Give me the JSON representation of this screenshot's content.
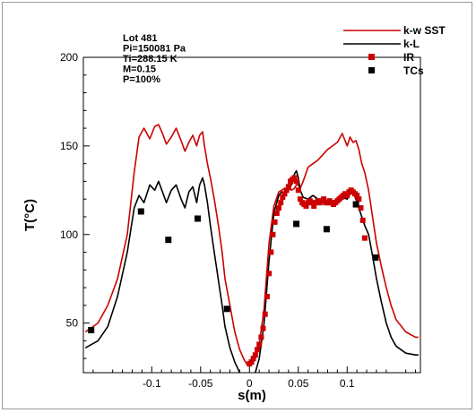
{
  "chart_data": {
    "type": "line",
    "xlabel": "s(m)",
    "ylabel": "T(°C)",
    "xlim": [
      -0.17,
      0.175
    ],
    "ylim": [
      22,
      200
    ],
    "xticks": [
      {
        "value": -0.1,
        "label": "-0.1"
      },
      {
        "value": -0.05,
        "label": "-0.05"
      },
      {
        "value": 0,
        "label": "0"
      },
      {
        "value": 0.05,
        "label": "0.05"
      },
      {
        "value": 0.1,
        "label": "0.1"
      }
    ],
    "yticks": [
      {
        "value": 50,
        "label": "50"
      },
      {
        "value": 100,
        "label": "100"
      },
      {
        "value": 150,
        "label": "150"
      },
      {
        "value": 200,
        "label": "200"
      }
    ],
    "grid": false,
    "legend_position": "top-right",
    "info_lines": [
      "Lot 481",
      "Pi=150081 Pa",
      "Ti=288.15 K",
      "M=0.15",
      "P=100%"
    ],
    "series": [
      {
        "name": "k-w SST",
        "kind": "line",
        "color": "#cc0000",
        "x": [
          -0.168,
          -0.155,
          -0.145,
          -0.135,
          -0.125,
          -0.118,
          -0.113,
          -0.108,
          -0.102,
          -0.097,
          -0.093,
          -0.089,
          -0.085,
          -0.08,
          -0.075,
          -0.07,
          -0.066,
          -0.062,
          -0.058,
          -0.054,
          -0.051,
          -0.048,
          -0.046,
          -0.043,
          -0.04,
          -0.036,
          -0.032,
          -0.028,
          -0.025,
          -0.02,
          -0.015,
          -0.01,
          -0.006,
          -0.003,
          0,
          0.003,
          0.006,
          0.01,
          0.015,
          0.02,
          0.025,
          0.03,
          0.033,
          0.036,
          0.04,
          0.043,
          0.046,
          0.048,
          0.05,
          0.052,
          0.055,
          0.06,
          0.065,
          0.07,
          0.075,
          0.08,
          0.085,
          0.09,
          0.095,
          0.1,
          0.103,
          0.106,
          0.109,
          0.112,
          0.115,
          0.118,
          0.122,
          0.126,
          0.13,
          0.135,
          0.14,
          0.145,
          0.15,
          0.16,
          0.17,
          0.173
        ],
        "y": [
          45,
          50,
          60,
          75,
          100,
          135,
          155,
          160,
          154,
          161,
          162,
          157,
          151,
          155,
          160,
          153,
          147,
          152,
          156,
          150,
          156,
          158,
          150,
          140,
          132,
          120,
          106,
          90,
          75,
          60,
          45,
          35,
          30,
          27,
          26,
          27,
          30,
          38,
          58,
          95,
          116,
          124,
          125,
          126,
          126,
          125,
          126,
          128,
          128,
          126,
          130,
          138,
          140,
          142,
          145,
          148,
          150,
          152,
          157,
          150,
          155,
          152,
          153,
          148,
          140,
          135,
          125,
          110,
          95,
          82,
          70,
          60,
          52,
          45,
          42,
          42
        ]
      },
      {
        "name": "k-L",
        "kind": "line",
        "color": "#000000",
        "x": [
          -0.168,
          -0.155,
          -0.145,
          -0.135,
          -0.125,
          -0.118,
          -0.113,
          -0.108,
          -0.102,
          -0.097,
          -0.093,
          -0.089,
          -0.085,
          -0.08,
          -0.075,
          -0.07,
          -0.066,
          -0.062,
          -0.058,
          -0.054,
          -0.051,
          -0.048,
          -0.046,
          -0.043,
          -0.04,
          -0.036,
          -0.032,
          -0.028,
          -0.025,
          -0.02,
          -0.015,
          -0.01,
          -0.006,
          -0.003,
          0,
          0.003,
          0.006,
          0.01,
          0.015,
          0.02,
          0.025,
          0.03,
          0.033,
          0.036,
          0.04,
          0.043,
          0.046,
          0.048,
          0.05,
          0.052,
          0.055,
          0.06,
          0.065,
          0.07,
          0.075,
          0.08,
          0.085,
          0.09,
          0.095,
          0.1,
          0.103,
          0.106,
          0.109,
          0.112,
          0.115,
          0.118,
          0.122,
          0.126,
          0.13,
          0.135,
          0.14,
          0.145,
          0.15,
          0.16,
          0.17,
          0.173
        ],
        "y": [
          36,
          40,
          48,
          65,
          90,
          115,
          122,
          118,
          128,
          125,
          130,
          124,
          118,
          125,
          128,
          120,
          115,
          124,
          127,
          118,
          128,
          132,
          128,
          118,
          105,
          90,
          75,
          60,
          48,
          36,
          28,
          22,
          20,
          20,
          20,
          20,
          22,
          30,
          50,
          85,
          112,
          122,
          124,
          124,
          126,
          128,
          134,
          136,
          132,
          125,
          121,
          120,
          122,
          120,
          118,
          118,
          118,
          120,
          121,
          120,
          123,
          125,
          120,
          115,
          110,
          105,
          100,
          88,
          75,
          62,
          50,
          42,
          37,
          33,
          32,
          32
        ]
      },
      {
        "name": "IR",
        "kind": "marker",
        "color": "#cc0000",
        "marker": "square-small",
        "x": [
          0.0,
          0.002,
          0.004,
          0.006,
          0.008,
          0.01,
          0.012,
          0.014,
          0.016,
          0.018,
          0.02,
          0.022,
          0.024,
          0.026,
          0.028,
          0.03,
          0.032,
          0.034,
          0.036,
          0.038,
          0.04,
          0.042,
          0.044,
          0.046,
          0.048,
          0.05,
          0.052,
          0.054,
          0.056,
          0.058,
          0.06,
          0.062,
          0.064,
          0.066,
          0.068,
          0.07,
          0.072,
          0.074,
          0.076,
          0.078,
          0.08,
          0.082,
          0.084,
          0.086,
          0.088,
          0.09,
          0.092,
          0.094,
          0.096,
          0.098,
          0.1,
          0.102,
          0.104,
          0.106,
          0.108,
          0.11,
          0.112,
          0.114,
          0.116,
          0.118
        ],
        "y": [
          27,
          28,
          30,
          32,
          35,
          38,
          42,
          47,
          55,
          65,
          78,
          90,
          100,
          107,
          112,
          115,
          118,
          121,
          123,
          125,
          127,
          130,
          131,
          132,
          130,
          125,
          120,
          118,
          117,
          116,
          118,
          119,
          118,
          116,
          118,
          119,
          118,
          119,
          120,
          118,
          118,
          119,
          118,
          117,
          118,
          119,
          120,
          121,
          122,
          123,
          122,
          124,
          125,
          124,
          123,
          122,
          120,
          115,
          108,
          98
        ]
      },
      {
        "name": "TCs",
        "kind": "marker",
        "color": "#000000",
        "marker": "square",
        "x": [
          -0.162,
          -0.111,
          -0.083,
          -0.053,
          -0.023,
          0.048,
          0.079,
          0.109,
          0.129
        ],
        "y": [
          46,
          113,
          97,
          109,
          58,
          106,
          103,
          117,
          87
        ]
      }
    ]
  }
}
